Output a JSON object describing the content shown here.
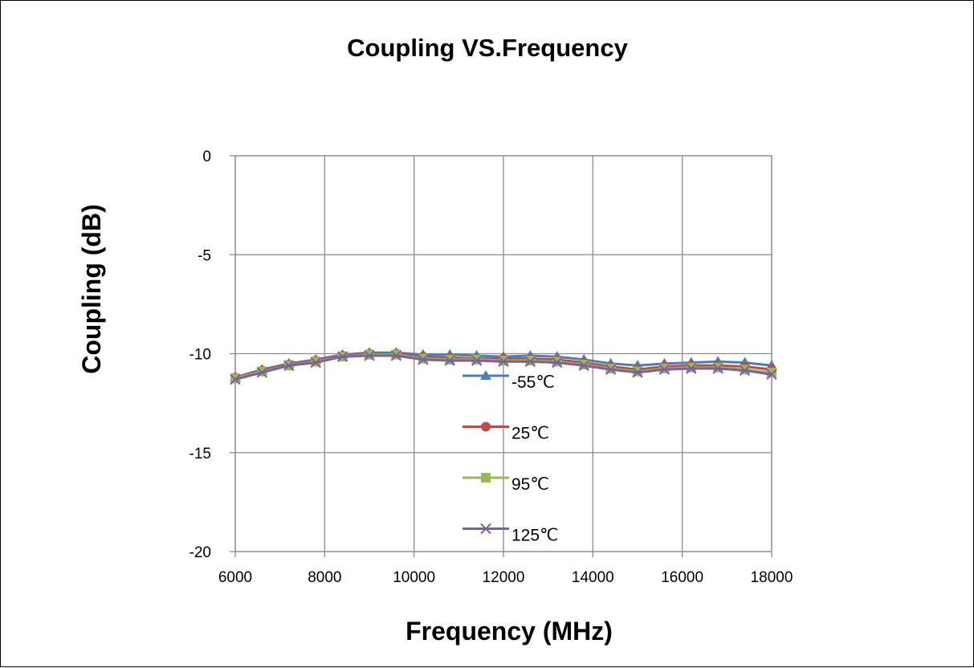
{
  "chart_data": {
    "type": "line",
    "title": "Coupling VS.Frequency",
    "xlabel": "Frequency (MHz)",
    "ylabel": "Coupling  (dB)",
    "xlim": [
      6000,
      18000
    ],
    "ylim": [
      -20,
      0
    ],
    "xticks": [
      "6000",
      "8000",
      "10000",
      "12000",
      "14000",
      "16000",
      "18000"
    ],
    "yticks": [
      "0",
      "-5",
      "-10",
      "-15",
      "-20"
    ],
    "grid": true,
    "legend_position": "inside-center",
    "x": [
      6000,
      6600,
      7200,
      7800,
      8400,
      9000,
      9600,
      10200,
      10800,
      11400,
      12000,
      12600,
      13200,
      13800,
      14400,
      15000,
      15600,
      16200,
      16800,
      17400,
      18000
    ],
    "series": [
      {
        "name": "-55℃",
        "color": "#4a7ebb",
        "marker": "triangle",
        "values": [
          -11.2,
          -10.8,
          -10.5,
          -10.3,
          -10.05,
          -9.95,
          -9.95,
          -10.05,
          -10.05,
          -10.1,
          -10.15,
          -10.1,
          -10.15,
          -10.3,
          -10.5,
          -10.6,
          -10.5,
          -10.45,
          -10.4,
          -10.45,
          -10.6
        ]
      },
      {
        "name": "25℃",
        "color": "#be4b48",
        "marker": "circle",
        "values": [
          -11.2,
          -10.85,
          -10.55,
          -10.35,
          -10.1,
          -10.0,
          -10.0,
          -10.15,
          -10.2,
          -10.25,
          -10.25,
          -10.25,
          -10.3,
          -10.45,
          -10.65,
          -10.8,
          -10.65,
          -10.6,
          -10.6,
          -10.65,
          -10.8
        ]
      },
      {
        "name": "95℃",
        "color": "#98b954",
        "marker": "square",
        "values": [
          -11.25,
          -10.9,
          -10.6,
          -10.4,
          -10.15,
          -10.05,
          -10.05,
          -10.25,
          -10.3,
          -10.3,
          -10.35,
          -10.35,
          -10.4,
          -10.55,
          -10.75,
          -10.9,
          -10.75,
          -10.7,
          -10.7,
          -10.8,
          -10.95
        ]
      },
      {
        "name": "125℃",
        "color": "#7d60a0",
        "marker": "x",
        "values": [
          -11.3,
          -10.95,
          -10.6,
          -10.45,
          -10.15,
          -10.1,
          -10.1,
          -10.3,
          -10.35,
          -10.35,
          -10.4,
          -10.4,
          -10.45,
          -10.6,
          -10.8,
          -10.95,
          -10.8,
          -10.75,
          -10.75,
          -10.85,
          -11.05
        ]
      }
    ]
  }
}
